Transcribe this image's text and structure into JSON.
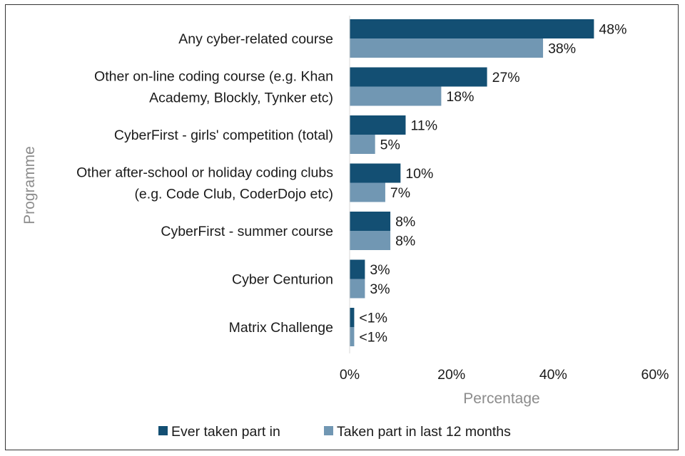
{
  "chart_data": {
    "type": "bar",
    "orientation": "horizontal",
    "categories": [
      [
        "Any cyber-related course"
      ],
      [
        "Other on-line coding course (e.g. Khan",
        "Academy, Blockly, Tynker etc)"
      ],
      [
        "CyberFirst - girls' competition (total)"
      ],
      [
        "Other after-school or holiday coding clubs",
        "(e.g. Code Club, CoderDojo etc)"
      ],
      [
        "CyberFirst - summer course"
      ],
      [
        "Cyber Centurion"
      ],
      [
        "Matrix Challenge"
      ]
    ],
    "series": [
      {
        "name": "Ever taken part in",
        "color": "#134f73",
        "values": [
          48,
          27,
          11,
          10,
          8,
          3,
          0.9
        ],
        "labels": [
          "48%",
          "27%",
          "11%",
          "10%",
          "8%",
          "3%",
          "<1%"
        ]
      },
      {
        "name": "Taken part in last 12 months",
        "color": "#7197b3",
        "values": [
          38,
          18,
          5,
          7,
          8,
          3,
          0.9
        ],
        "labels": [
          "38%",
          "18%",
          "5%",
          "7%",
          "8%",
          "3%",
          "<1%"
        ]
      }
    ],
    "xlim": [
      0,
      60
    ],
    "xticks": [
      0,
      20,
      40,
      60
    ],
    "xtick_labels": [
      "0%",
      "20%",
      "40%",
      "60%"
    ],
    "xlabel": "Percentage",
    "ylabel": "Programme",
    "grid": false,
    "legend_position": "bottom"
  }
}
